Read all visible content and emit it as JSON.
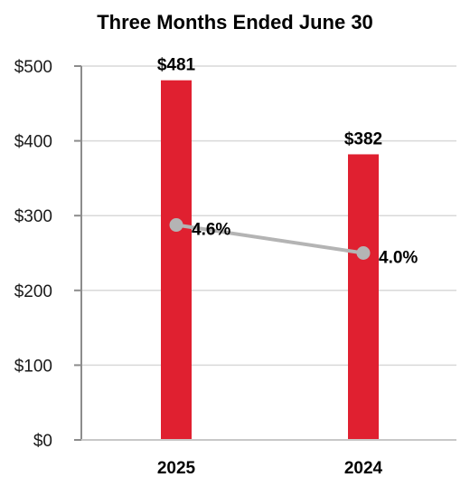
{
  "chart_data": {
    "type": "bar",
    "title": "Three Months Ended June 30",
    "categories": [
      "2025",
      "2024"
    ],
    "series": [
      {
        "type": "bar",
        "values": [
          481,
          382
        ],
        "labels": [
          "$481",
          "$382"
        ],
        "color": "#e02030"
      },
      {
        "type": "line",
        "values": [
          4.6,
          4.0
        ],
        "labels": [
          "4.6%",
          "4.0%"
        ],
        "color": "#b4b4b4"
      }
    ],
    "yticks": [
      0,
      100,
      200,
      300,
      400,
      500
    ],
    "ytick_labels": [
      "$0",
      "$100",
      "$200",
      "$300",
      "$400",
      "$500"
    ],
    "ylim": [
      0,
      500
    ],
    "grid": true,
    "legend": "none"
  }
}
